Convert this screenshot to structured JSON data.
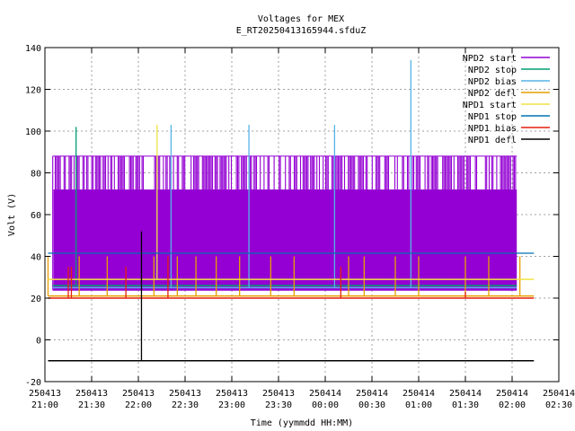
{
  "chart_data": {
    "type": "line",
    "title": "Voltages for MEX",
    "subtitle": "E_RT20250413165944.sfduZ",
    "xlabel": "Time (yymmdd HH:MM)",
    "ylabel": "Volt (V)",
    "ylim": [
      -20,
      140
    ],
    "xlim": [
      "250413 21:00",
      "250414 02:30"
    ],
    "yticks": [
      -20,
      0,
      20,
      40,
      60,
      80,
      100,
      120,
      140
    ],
    "xticks": [
      {
        "date": "250413",
        "time": "21:00"
      },
      {
        "date": "250413",
        "time": "21:30"
      },
      {
        "date": "250413",
        "time": "22:00"
      },
      {
        "date": "250413",
        "time": "22:30"
      },
      {
        "date": "250413",
        "time": "23:00"
      },
      {
        "date": "250413",
        "time": "23:30"
      },
      {
        "date": "250414",
        "time": "00:00"
      },
      {
        "date": "250414",
        "time": "00:30"
      },
      {
        "date": "250414",
        "time": "01:00"
      },
      {
        "date": "250414",
        "time": "01:30"
      },
      {
        "date": "250414",
        "time": "02:00"
      },
      {
        "date": "250414",
        "time": "02:30"
      }
    ],
    "grid": true,
    "legend_position": "top-right",
    "series": [
      {
        "name": "NPD2 start",
        "color": "#9400d3",
        "style": "band",
        "x_start": "21:05",
        "x_end": "02:03",
        "low": 24,
        "high": 88,
        "upper_mid": 72,
        "notes": "dense oscillation between ~24 and ~88 V"
      },
      {
        "name": "NPD2 stop",
        "color": "#009e73",
        "style": "level",
        "x_start": "21:05",
        "x_end": "02:03",
        "level": 26,
        "spikes": [
          {
            "x": "21:20",
            "y": 102
          }
        ]
      },
      {
        "name": "NPD2 bias",
        "color": "#56b4e9",
        "style": "level",
        "x_start": "21:05",
        "x_end": "02:03",
        "level": 25,
        "spikes": [
          {
            "x": "22:21",
            "y": 103
          },
          {
            "x": "23:11",
            "y": 103
          },
          {
            "x": "00:06",
            "y": 103
          },
          {
            "x": "00:55",
            "y": 134
          }
        ]
      },
      {
        "name": "NPD2 defl",
        "color": "#e69f00",
        "style": "level",
        "x_start": "21:02",
        "x_end": "02:14",
        "level": 21,
        "spikes": [
          {
            "x": "21:02",
            "y": 40
          },
          {
            "x": "21:22",
            "y": 40
          },
          {
            "x": "21:40",
            "y": 40
          },
          {
            "x": "22:10",
            "y": 40
          },
          {
            "x": "22:25",
            "y": 40
          },
          {
            "x": "22:37",
            "y": 40
          },
          {
            "x": "22:50",
            "y": 40
          },
          {
            "x": "23:05",
            "y": 40
          },
          {
            "x": "23:25",
            "y": 40
          },
          {
            "x": "23:40",
            "y": 40
          },
          {
            "x": "00:15",
            "y": 40
          },
          {
            "x": "00:25",
            "y": 40
          },
          {
            "x": "00:45",
            "y": 40
          },
          {
            "x": "01:00",
            "y": 40
          },
          {
            "x": "01:30",
            "y": 40
          },
          {
            "x": "01:45",
            "y": 40
          },
          {
            "x": "02:05",
            "y": 40
          }
        ]
      },
      {
        "name": "NPD1 start",
        "color": "#f0e442",
        "style": "level",
        "x_start": "21:02",
        "x_end": "02:14",
        "level": 29,
        "spikes": [
          {
            "x": "22:12",
            "y": 103
          }
        ]
      },
      {
        "name": "NPD1 stop",
        "color": "#0072b2",
        "style": "level",
        "x_start": "21:02",
        "x_end": "02:14",
        "level": 41.5,
        "spikes": []
      },
      {
        "name": "NPD1 bias",
        "color": "#e51e10",
        "style": "level",
        "x_start": "21:02",
        "x_end": "02:14",
        "level": 20,
        "spikes": [
          {
            "x": "21:15",
            "y": 35
          },
          {
            "x": "21:17",
            "y": 35
          },
          {
            "x": "21:52",
            "y": 35
          },
          {
            "x": "22:19",
            "y": 40
          },
          {
            "x": "00:10",
            "y": 35
          },
          {
            "x": "01:30",
            "y": 23
          }
        ]
      },
      {
        "name": "NPD1 defl",
        "color": "#000000",
        "style": "level",
        "x_start": "21:02",
        "x_end": "02:14",
        "level": -10,
        "spikes": [
          {
            "x": "22:02",
            "y": 52
          }
        ]
      }
    ]
  }
}
